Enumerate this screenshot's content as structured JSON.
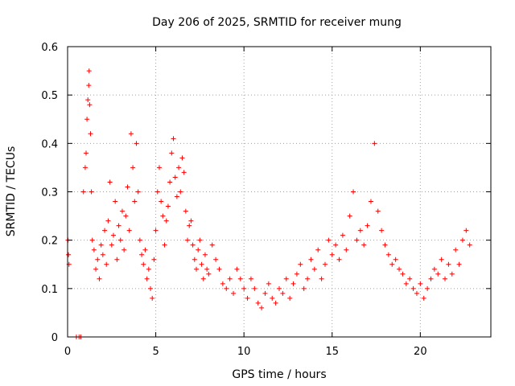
{
  "chart_data": {
    "type": "scatter",
    "title": "Day 206 of 2025, SRMTID for receiver mung",
    "xlabel": "GPS time / hours",
    "ylabel": "SRMTID / TECUs",
    "xlim": [
      0,
      24
    ],
    "ylim": [
      0,
      0.6
    ],
    "xticks": [
      0,
      5,
      10,
      15,
      20
    ],
    "xtick_labels": [
      "0",
      "5",
      "10",
      "15",
      "20"
    ],
    "yticks": [
      0,
      0.1,
      0.2,
      0.3,
      0.4,
      0.5,
      0.6
    ],
    "ytick_labels": [
      "0",
      "0.1",
      "0.2",
      "0.3",
      "0.4",
      "0.5",
      "0.6"
    ],
    "grid": true,
    "marker": "+",
    "color": "#ff0000",
    "series": [
      {
        "name": "SRMTID",
        "x": [
          0.02,
          0.05,
          0.08,
          0.5,
          0.65,
          0.75,
          0.9,
          1.0,
          1.05,
          1.1,
          1.15,
          1.2,
          1.22,
          1.25,
          1.3,
          1.35,
          1.4,
          1.5,
          1.6,
          1.7,
          1.8,
          1.9,
          2.0,
          2.1,
          2.2,
          2.3,
          2.4,
          2.5,
          2.6,
          2.7,
          2.8,
          2.9,
          3.0,
          3.1,
          3.2,
          3.3,
          3.4,
          3.5,
          3.6,
          3.7,
          3.8,
          3.9,
          4.0,
          4.1,
          4.2,
          4.3,
          4.4,
          4.5,
          4.6,
          4.7,
          4.8,
          4.9,
          5.0,
          5.1,
          5.2,
          5.3,
          5.4,
          5.5,
          5.6,
          5.7,
          5.8,
          5.9,
          6.0,
          6.1,
          6.2,
          6.3,
          6.4,
          6.5,
          6.6,
          6.7,
          6.8,
          6.9,
          7.0,
          7.1,
          7.2,
          7.3,
          7.4,
          7.5,
          7.6,
          7.7,
          7.8,
          7.9,
          8.0,
          8.2,
          8.4,
          8.6,
          8.8,
          9.0,
          9.2,
          9.4,
          9.6,
          9.8,
          10.0,
          10.2,
          10.4,
          10.6,
          10.8,
          11.0,
          11.2,
          11.4,
          11.6,
          11.8,
          12.0,
          12.2,
          12.4,
          12.6,
          12.8,
          13.0,
          13.2,
          13.4,
          13.6,
          13.8,
          14.0,
          14.2,
          14.4,
          14.6,
          14.8,
          15.0,
          15.2,
          15.4,
          15.6,
          15.8,
          16.0,
          16.2,
          16.4,
          16.6,
          16.8,
          17.0,
          17.2,
          17.4,
          17.6,
          17.8,
          18.0,
          18.2,
          18.4,
          18.6,
          18.8,
          19.0,
          19.2,
          19.4,
          19.6,
          19.8,
          20.0,
          20.2,
          20.4,
          20.6,
          20.8,
          21.0,
          21.2,
          21.4,
          21.6,
          21.8,
          22.0,
          22.2,
          22.4,
          22.6,
          22.8
        ],
        "y": [
          0.2,
          0.17,
          0.15,
          0.0,
          0.0,
          0.0,
          0.3,
          0.35,
          0.38,
          0.45,
          0.49,
          0.52,
          0.55,
          0.48,
          0.42,
          0.3,
          0.2,
          0.18,
          0.14,
          0.16,
          0.12,
          0.19,
          0.17,
          0.22,
          0.15,
          0.24,
          0.32,
          0.19,
          0.21,
          0.28,
          0.16,
          0.23,
          0.2,
          0.26,
          0.18,
          0.25,
          0.31,
          0.22,
          0.42,
          0.35,
          0.28,
          0.4,
          0.3,
          0.2,
          0.17,
          0.15,
          0.18,
          0.12,
          0.14,
          0.1,
          0.08,
          0.16,
          0.22,
          0.3,
          0.35,
          0.28,
          0.25,
          0.19,
          0.24,
          0.27,
          0.32,
          0.38,
          0.41,
          0.33,
          0.29,
          0.35,
          0.3,
          0.37,
          0.34,
          0.26,
          0.2,
          0.23,
          0.24,
          0.19,
          0.16,
          0.14,
          0.18,
          0.2,
          0.15,
          0.12,
          0.17,
          0.14,
          0.13,
          0.19,
          0.16,
          0.14,
          0.11,
          0.1,
          0.12,
          0.09,
          0.14,
          0.12,
          0.1,
          0.08,
          0.12,
          0.1,
          0.07,
          0.06,
          0.09,
          0.11,
          0.08,
          0.07,
          0.1,
          0.09,
          0.12,
          0.08,
          0.11,
          0.13,
          0.15,
          0.1,
          0.12,
          0.16,
          0.14,
          0.18,
          0.12,
          0.15,
          0.2,
          0.17,
          0.19,
          0.16,
          0.21,
          0.18,
          0.25,
          0.3,
          0.2,
          0.22,
          0.19,
          0.23,
          0.28,
          0.4,
          0.26,
          0.22,
          0.19,
          0.17,
          0.15,
          0.16,
          0.14,
          0.13,
          0.11,
          0.12,
          0.1,
          0.09,
          0.11,
          0.08,
          0.1,
          0.12,
          0.14,
          0.13,
          0.16,
          0.12,
          0.15,
          0.13,
          0.18,
          0.15,
          0.2,
          0.22,
          0.19
        ]
      }
    ]
  }
}
